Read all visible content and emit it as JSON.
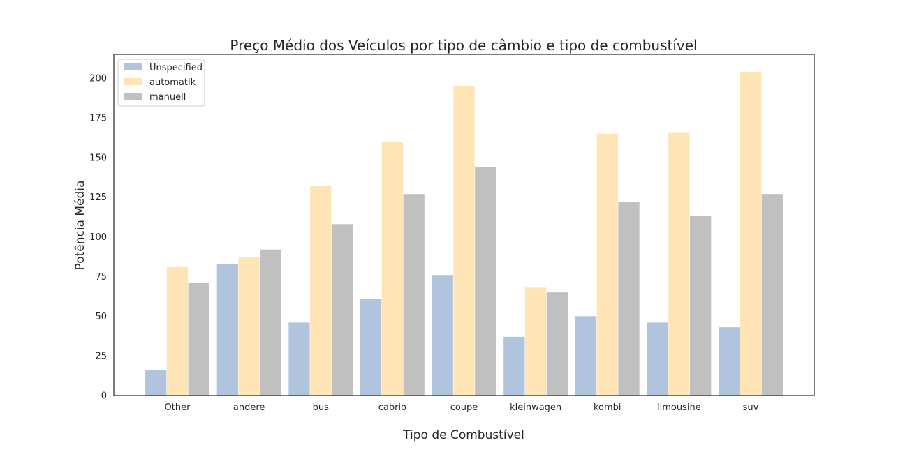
{
  "chart_data": {
    "type": "bar",
    "title": "Preço Médio dos Veículos por tipo de câmbio e tipo de combustível",
    "xlabel": "Tipo de Combustível",
    "ylabel": "Potência Média",
    "ylim": [
      0,
      215
    ],
    "yticks": [
      0,
      25,
      50,
      75,
      100,
      125,
      150,
      175,
      200
    ],
    "grid": false,
    "legend_position": "top-left",
    "categories": [
      "Other",
      "andere",
      "bus",
      "cabrio",
      "coupe",
      "kleinwagen",
      "kombi",
      "limousine",
      "suv"
    ],
    "series": [
      {
        "name": "Unspecified",
        "color": "#b0c4de",
        "values": [
          16,
          83,
          46,
          61,
          76,
          37,
          50,
          46,
          43
        ]
      },
      {
        "name": "automatik",
        "color": "#ffe4b5",
        "values": [
          81,
          87,
          132,
          160,
          195,
          68,
          165,
          166,
          204
        ]
      },
      {
        "name": "manuell",
        "color": "#c0c0c0",
        "values": [
          71,
          92,
          108,
          127,
          144,
          65,
          122,
          113,
          127
        ]
      }
    ]
  }
}
